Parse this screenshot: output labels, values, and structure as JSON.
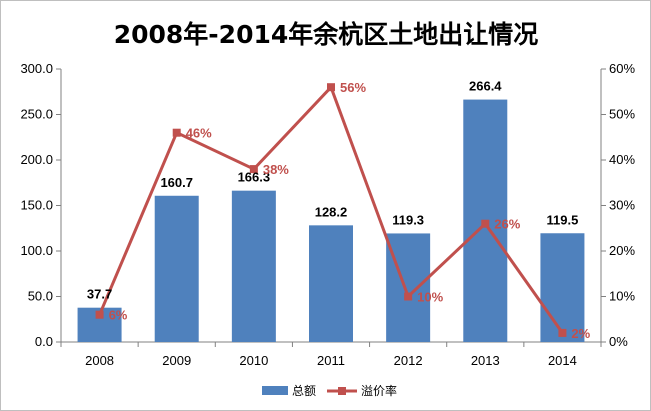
{
  "chart_data": {
    "type": "bar+line",
    "title": "2008年-2014年余杭区土地出让情况",
    "categories": [
      "2008",
      "2009",
      "2010",
      "2011",
      "2012",
      "2013",
      "2014"
    ],
    "series": [
      {
        "name": "总额",
        "type": "bar",
        "axis": "left",
        "color": "#4f81bd",
        "values": [
          37.7,
          160.7,
          166.3,
          128.2,
          119.3,
          266.4,
          119.5
        ],
        "labels": [
          "37.7",
          "160.7",
          "166.3",
          "128.2",
          "119.3",
          "266.4",
          "119.5"
        ]
      },
      {
        "name": "溢价率",
        "type": "line",
        "axis": "right",
        "color": "#c0504d",
        "values": [
          6,
          46,
          38,
          56,
          10,
          26,
          2
        ],
        "labels": [
          "6%",
          "46%",
          "38%",
          "56%",
          "10%",
          "26%",
          "2%"
        ]
      }
    ],
    "y_left": {
      "ylim": [
        0,
        300
      ],
      "ticks": [
        "0.0",
        "50.0",
        "100.0",
        "150.0",
        "200.0",
        "250.0",
        "300.0"
      ]
    },
    "y_right": {
      "ylim": [
        0,
        60
      ],
      "ticks": [
        "0%",
        "10%",
        "20%",
        "30%",
        "40%",
        "50%",
        "60%"
      ]
    },
    "grid": false,
    "legend": "bottom"
  }
}
